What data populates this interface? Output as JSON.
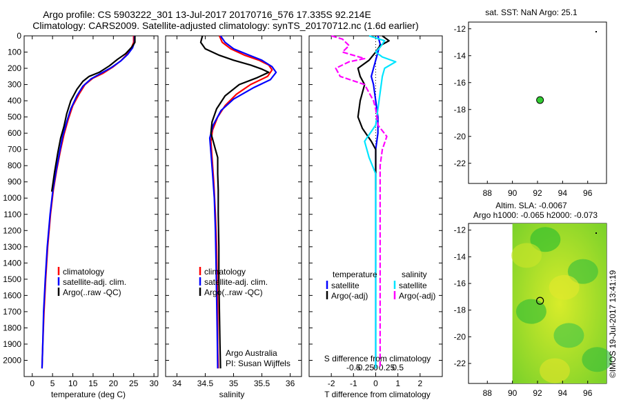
{
  "header": {
    "line1": "Argo profile: CS 5903222_301 13-Jul-2017 20170716_576 17.335S 92.214E",
    "line2": "Climatology: CARS2009. Satellite-adjusted climatology: synTS_20170712.nc (1.6d earlier)"
  },
  "watermark": "©IMOS 19-Jul-2017 13:41:19",
  "colors": {
    "climatology": "#ff0000",
    "satellite": "#0000ff",
    "argo": "#000000",
    "sat_cyan": "#00e5ff",
    "argo_magenta": "#ff00ff",
    "map_marker": "#33cc33"
  },
  "chart_data": [
    {
      "id": "temperature",
      "type": "line",
      "xlabel": "temperature (deg C)",
      "xlim": [
        -2,
        31
      ],
      "ylim": [
        0,
        2100
      ],
      "xticks": [
        0,
        5,
        10,
        15,
        20,
        25,
        30
      ],
      "yticks": [
        0,
        100,
        200,
        300,
        400,
        500,
        600,
        700,
        800,
        900,
        1000,
        1100,
        1200,
        1300,
        1400,
        1500,
        1600,
        1700,
        1800,
        1900,
        2000
      ],
      "legend": [
        "climatology",
        "satellite-adj. clim.",
        "Argo(..raw -QC)"
      ],
      "series": [
        {
          "name": "climatology",
          "points": [
            [
              25,
              0
            ],
            [
              25,
              40
            ],
            [
              24.5,
              70
            ],
            [
              23.5,
              110
            ],
            [
              22,
              150
            ],
            [
              20,
              190
            ],
            [
              17.5,
              230
            ],
            [
              15,
              260
            ],
            [
              13,
              300
            ],
            [
              11.5,
              360
            ],
            [
              10,
              430
            ],
            [
              8.8,
              520
            ],
            [
              7.8,
              610
            ],
            [
              7,
              700
            ],
            [
              6,
              830
            ],
            [
              5.2,
              950
            ],
            [
              4.5,
              1100
            ],
            [
              3.8,
              1300
            ],
            [
              3.3,
              1500
            ],
            [
              2.9,
              1700
            ],
            [
              2.6,
              1900
            ],
            [
              2.4,
              2050
            ]
          ]
        },
        {
          "name": "satellite-adj. clim.",
          "points": [
            [
              25.2,
              0
            ],
            [
              25.2,
              40
            ],
            [
              24.7,
              75
            ],
            [
              23.5,
              115
            ],
            [
              21.8,
              155
            ],
            [
              19.5,
              195
            ],
            [
              17,
              230
            ],
            [
              14.5,
              265
            ],
            [
              12.5,
              310
            ],
            [
              11,
              370
            ],
            [
              9.5,
              450
            ],
            [
              8.5,
              530
            ],
            [
              7.5,
              620
            ],
            [
              6.8,
              710
            ],
            [
              5.9,
              830
            ],
            [
              5.1,
              950
            ],
            [
              4.4,
              1100
            ],
            [
              3.7,
              1300
            ],
            [
              3.2,
              1500
            ],
            [
              2.8,
              1700
            ],
            [
              2.6,
              1900
            ],
            [
              2.4,
              2050
            ]
          ]
        },
        {
          "name": "Argo(..raw -QC)",
          "points": [
            [
              25.3,
              0
            ],
            [
              25.3,
              40
            ],
            [
              24.5,
              70
            ],
            [
              23,
              110
            ],
            [
              21,
              145
            ],
            [
              19,
              185
            ],
            [
              16.5,
              225
            ],
            [
              14,
              250
            ],
            [
              12.5,
              280
            ],
            [
              11,
              330
            ],
            [
              9.5,
              400
            ],
            [
              8.5,
              480
            ],
            [
              7.8,
              560
            ],
            [
              7,
              630
            ],
            [
              6.3,
              720
            ],
            [
              5.5,
              840
            ],
            [
              4.8,
              960
            ]
          ]
        }
      ]
    },
    {
      "id": "salinity",
      "type": "line",
      "xlabel": "salinity",
      "xlim": [
        33.8,
        36.2
      ],
      "ylim": [
        0,
        2100
      ],
      "xticks": [
        34,
        34.5,
        35,
        35.5,
        36
      ],
      "legend": [
        "climatology",
        "satellite-adj. clim.",
        "Argo(..raw -QC)"
      ],
      "annotations": [
        "Argo Australia",
        "PI: Susan Wijffels"
      ],
      "series": [
        {
          "name": "climatology",
          "points": [
            [
              34.75,
              0
            ],
            [
              34.8,
              40
            ],
            [
              34.95,
              80
            ],
            [
              35.2,
              120
            ],
            [
              35.45,
              150
            ],
            [
              35.62,
              180
            ],
            [
              35.68,
              210
            ],
            [
              35.6,
              250
            ],
            [
              35.3,
              300
            ],
            [
              35.05,
              360
            ],
            [
              34.85,
              430
            ],
            [
              34.72,
              500
            ],
            [
              34.63,
              580
            ],
            [
              34.6,
              650
            ],
            [
              34.62,
              750
            ],
            [
              34.65,
              900
            ],
            [
              34.68,
              1100
            ],
            [
              34.7,
              1300
            ],
            [
              34.71,
              1500
            ],
            [
              34.72,
              1700
            ],
            [
              34.72,
              1900
            ],
            [
              34.73,
              2050
            ]
          ]
        },
        {
          "name": "satellite-adj. clim.",
          "points": [
            [
              34.77,
              0
            ],
            [
              34.85,
              40
            ],
            [
              35.0,
              80
            ],
            [
              35.25,
              115
            ],
            [
              35.5,
              150
            ],
            [
              35.68,
              190
            ],
            [
              35.75,
              225
            ],
            [
              35.65,
              270
            ],
            [
              35.35,
              320
            ],
            [
              35.0,
              390
            ],
            [
              34.78,
              460
            ],
            [
              34.64,
              550
            ],
            [
              34.58,
              630
            ],
            [
              34.6,
              720
            ],
            [
              34.63,
              850
            ],
            [
              34.66,
              1000
            ],
            [
              34.68,
              1200
            ],
            [
              34.69,
              1400
            ],
            [
              34.7,
              1600
            ],
            [
              34.71,
              1800
            ],
            [
              34.72,
              2050
            ]
          ]
        },
        {
          "name": "Argo(..raw -QC)",
          "points": [
            [
              34.45,
              0
            ],
            [
              34.42,
              40
            ],
            [
              34.5,
              80
            ],
            [
              34.75,
              120
            ],
            [
              35.0,
              150
            ],
            [
              35.3,
              180
            ],
            [
              35.5,
              205
            ],
            [
              35.62,
              225
            ],
            [
              35.4,
              260
            ],
            [
              35.1,
              300
            ],
            [
              34.85,
              370
            ],
            [
              34.7,
              450
            ],
            [
              34.62,
              530
            ],
            [
              34.6,
              600
            ],
            [
              34.64,
              650
            ],
            [
              34.68,
              700
            ],
            [
              34.72,
              750
            ],
            [
              34.72,
              850
            ],
            [
              34.73,
              950
            ],
            [
              34.73,
              1100
            ],
            [
              34.74,
              1300
            ],
            [
              34.74,
              1500
            ],
            [
              34.75,
              1700
            ],
            [
              34.76,
              1900
            ],
            [
              34.77,
              2050
            ]
          ]
        }
      ]
    },
    {
      "id": "difference",
      "type": "line",
      "xlabel": "T difference from climatology",
      "xlabel2": "S difference from climatology",
      "xlim": [
        -3,
        3
      ],
      "ylim": [
        0,
        2100
      ],
      "xticks": [
        -2,
        -1,
        0,
        1,
        2
      ],
      "xticks2": [
        -0.5,
        -0.25,
        0,
        0.25,
        0.5
      ],
      "legend_headers": [
        "temperature",
        "salinity"
      ],
      "legend": [
        "satellite",
        "Argo(-adj)",
        "satellite",
        "Argo(-adj)"
      ],
      "series": [
        {
          "name": "temperature satellite",
          "points": [
            [
              0.1,
              0
            ],
            [
              0.2,
              50
            ],
            [
              0.1,
              100
            ],
            [
              0.0,
              150
            ],
            [
              -0.1,
              200
            ],
            [
              -0.2,
              250
            ],
            [
              -0.1,
              300
            ],
            [
              0.0,
              400
            ],
            [
              0.1,
              500
            ],
            [
              0.1,
              600
            ],
            [
              0.0,
              700
            ],
            [
              0.0,
              900
            ],
            [
              0.0,
              1200
            ],
            [
              0.0,
              1600
            ],
            [
              0.0,
              2050
            ]
          ]
        },
        {
          "name": "temperature Argo(-adj)",
          "points": [
            [
              0.3,
              0
            ],
            [
              0.6,
              30
            ],
            [
              0.2,
              60
            ],
            [
              0.0,
              100
            ],
            [
              -0.3,
              150
            ],
            [
              -0.8,
              200
            ],
            [
              -0.7,
              250
            ],
            [
              -0.5,
              300
            ],
            [
              -0.7,
              400
            ],
            [
              -0.8,
              500
            ],
            [
              -0.6,
              570
            ],
            [
              -0.2,
              650
            ],
            [
              0.0,
              700
            ],
            [
              0.0,
              850
            ],
            [
              0.0,
              950
            ]
          ]
        },
        {
          "name": "salinity satellite",
          "points": [
            [
              -0.3,
              0
            ],
            [
              0.4,
              30
            ],
            [
              0.2,
              70
            ],
            [
              0.0,
              100
            ],
            [
              0.3,
              130
            ],
            [
              0.9,
              160
            ],
            [
              0.4,
              200
            ],
            [
              0.3,
              250
            ],
            [
              0.2,
              350
            ],
            [
              0.1,
              450
            ],
            [
              0.0,
              550
            ],
            [
              -0.5,
              650
            ],
            [
              -0.3,
              750
            ],
            [
              0.0,
              850
            ],
            [
              0.0,
              1200
            ],
            [
              0.0,
              2050
            ]
          ]
        },
        {
          "name": "salinity Argo(-adj)",
          "points": [
            [
              -2.0,
              0
            ],
            [
              -1.5,
              20
            ],
            [
              -1.2,
              60
            ],
            [
              -1.5,
              100
            ],
            [
              -0.5,
              140
            ],
            [
              -1.2,
              160
            ],
            [
              -1.8,
              200
            ],
            [
              -1.6,
              250
            ],
            [
              -0.5,
              300
            ],
            [
              -0.1,
              400
            ],
            [
              0.0,
              450
            ],
            [
              0.1,
              550
            ],
            [
              0.5,
              620
            ],
            [
              0.3,
              700
            ],
            [
              0.2,
              800
            ],
            [
              0.2,
              900
            ],
            [
              0.2,
              1200
            ],
            [
              0.2,
              1600
            ],
            [
              0.2,
              1800
            ],
            [
              0.2,
              2050
            ]
          ]
        }
      ]
    },
    {
      "id": "sst_map",
      "type": "scatter",
      "title": "sat. SST: NaN Argo: 25.1",
      "xlim": [
        86.5,
        97.5
      ],
      "ylim": [
        -23.5,
        -11.5
      ],
      "xticks": [
        88,
        90,
        92,
        94,
        96
      ],
      "yticks": [
        -12,
        -14,
        -16,
        -18,
        -20,
        -22
      ],
      "points": [
        {
          "x": 92.2,
          "y": -17.3
        }
      ]
    },
    {
      "id": "sla_map",
      "type": "heatmap",
      "title": "Altim. SLA: -0.0067",
      "subtitle": "Argo h1000: -0.065 h2000: -0.073",
      "xlim": [
        86.5,
        97.5
      ],
      "ylim": [
        -23.5,
        -11.5
      ],
      "xticks": [
        88,
        90,
        92,
        94,
        96
      ],
      "yticks": [
        -12,
        -14,
        -16,
        -18,
        -20,
        -22
      ],
      "field_extent": {
        "x": [
          90,
          97.5
        ],
        "y": [
          -23.5,
          -11.5
        ]
      },
      "points": [
        {
          "x": 92.2,
          "y": -17.3
        }
      ]
    }
  ]
}
